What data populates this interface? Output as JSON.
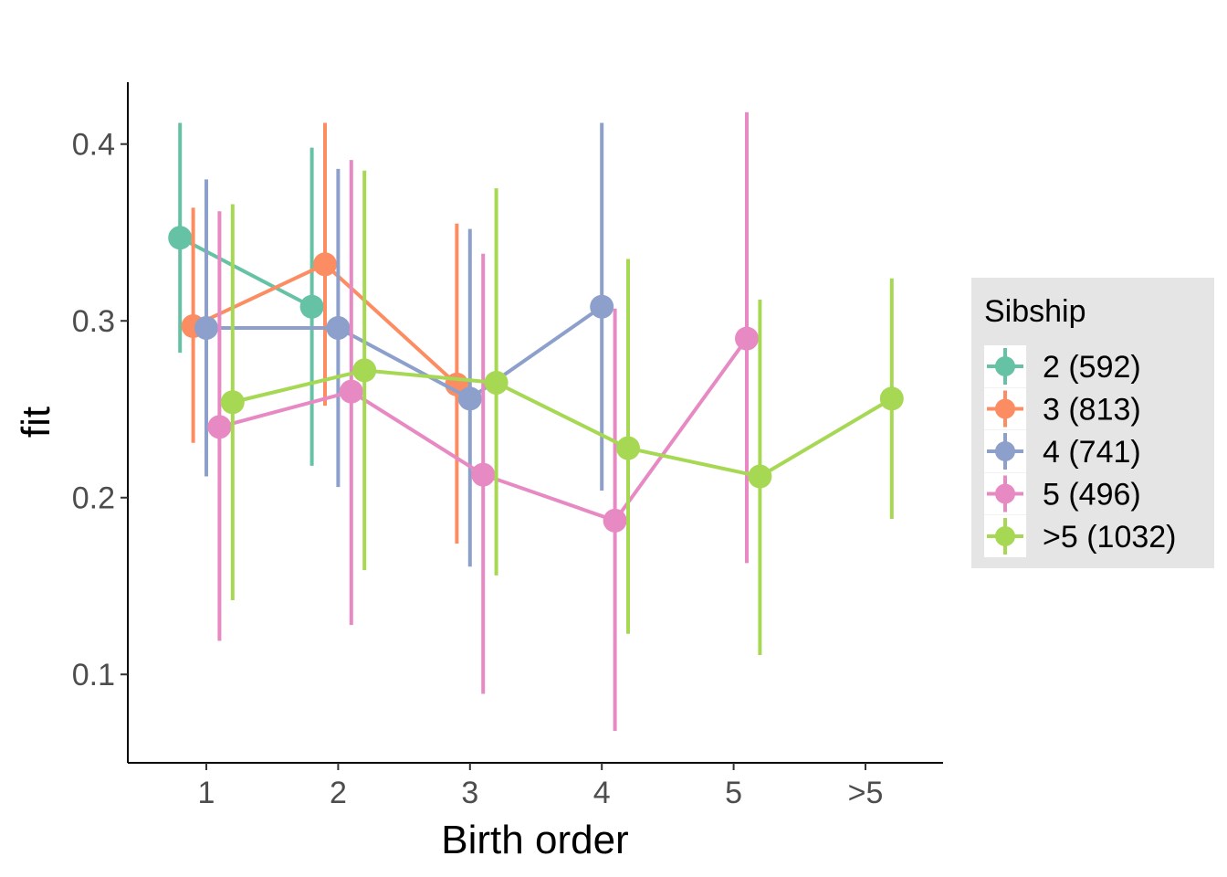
{
  "chart_data": {
    "type": "line",
    "title": "",
    "xlabel": "Birth order",
    "ylabel": "fit",
    "categories": [
      "1",
      "2",
      "3",
      "4",
      "5",
      ">5"
    ],
    "ylim": [
      0.05,
      0.435
    ],
    "yticks": [
      0.1,
      0.2,
      0.3,
      0.4
    ],
    "ytick_labels": [
      "0.1",
      "0.2",
      "0.3",
      "0.4"
    ],
    "grid": false,
    "legend_title": "Sibship",
    "legend_position": "right",
    "series": [
      {
        "name": "2 (592)",
        "color": "#66c2a5",
        "points": [
          {
            "x": "1",
            "y": 0.347,
            "lo": 0.282,
            "hi": 0.412
          },
          {
            "x": "2",
            "y": 0.308,
            "lo": 0.218,
            "hi": 0.398
          }
        ]
      },
      {
        "name": "3 (813)",
        "color": "#fc8d62",
        "points": [
          {
            "x": "1",
            "y": 0.297,
            "lo": 0.231,
            "hi": 0.364
          },
          {
            "x": "2",
            "y": 0.332,
            "lo": 0.252,
            "hi": 0.412
          },
          {
            "x": "3",
            "y": 0.264,
            "lo": 0.174,
            "hi": 0.355
          }
        ]
      },
      {
        "name": "4 (741)",
        "color": "#8da0cb",
        "points": [
          {
            "x": "1",
            "y": 0.296,
            "lo": 0.212,
            "hi": 0.38
          },
          {
            "x": "2",
            "y": 0.296,
            "lo": 0.206,
            "hi": 0.386
          },
          {
            "x": "3",
            "y": 0.256,
            "lo": 0.161,
            "hi": 0.352
          },
          {
            "x": "4",
            "y": 0.308,
            "lo": 0.204,
            "hi": 0.412
          }
        ]
      },
      {
        "name": "5 (496)",
        "color": "#e78ac3",
        "points": [
          {
            "x": "1",
            "y": 0.24,
            "lo": 0.119,
            "hi": 0.362
          },
          {
            "x": "2",
            "y": 0.26,
            "lo": 0.128,
            "hi": 0.391
          },
          {
            "x": "3",
            "y": 0.213,
            "lo": 0.089,
            "hi": 0.338
          },
          {
            "x": "4",
            "y": 0.187,
            "lo": 0.068,
            "hi": 0.307
          },
          {
            "x": "5",
            "y": 0.29,
            "lo": 0.163,
            "hi": 0.418
          }
        ]
      },
      {
        "name": ">5 (1032)",
        "color": "#a6d854",
        "points": [
          {
            "x": "1",
            "y": 0.254,
            "lo": 0.142,
            "hi": 0.366
          },
          {
            "x": "2",
            "y": 0.272,
            "lo": 0.159,
            "hi": 0.385
          },
          {
            "x": "3",
            "y": 0.265,
            "lo": 0.156,
            "hi": 0.375
          },
          {
            "x": "4",
            "y": 0.228,
            "lo": 0.123,
            "hi": 0.335
          },
          {
            "x": "5",
            "y": 0.212,
            "lo": 0.111,
            "hi": 0.312
          },
          {
            "x": ">5",
            "y": 0.256,
            "lo": 0.188,
            "hi": 0.324
          }
        ]
      }
    ]
  }
}
